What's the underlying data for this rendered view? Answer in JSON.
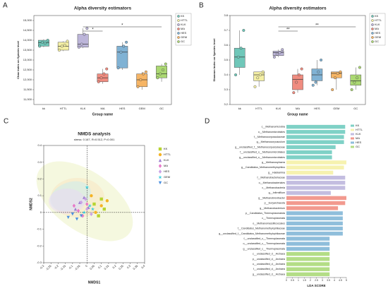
{
  "chart_data": [
    {
      "type": "box",
      "label": "A",
      "title": "Alpha diversity estimators",
      "x_label": "Group name",
      "y_label": "Chao index on Species level",
      "categories": [
        "kk",
        "HTTL",
        "KLK",
        "MA",
        "HES",
        "GEM",
        "GC"
      ],
      "colors": [
        "#6fc7b9",
        "#f4efa4",
        "#bcb5d9",
        "#f08c80",
        "#80b2d4",
        "#f6b565",
        "#abd872"
      ],
      "boxes": [
        {
          "min": 13650,
          "q1": 13700,
          "median": 13880,
          "q3": 14000,
          "max": 14050
        },
        {
          "min": 13450,
          "q1": 13500,
          "median": 13700,
          "q3": 13900,
          "max": 13950
        },
        {
          "min": 13600,
          "q1": 13650,
          "median": 13800,
          "q3": 14300,
          "max": 14600
        },
        {
          "min": 11800,
          "q1": 11900,
          "median": 12100,
          "q3": 12300,
          "max": 12550
        },
        {
          "min": 12500,
          "q1": 12600,
          "median": 13400,
          "q3": 13700,
          "max": 13900
        },
        {
          "min": 11500,
          "q1": 11650,
          "median": 12000,
          "q3": 12300,
          "max": 12400
        },
        {
          "min": 11900,
          "q1": 12100,
          "median": 12300,
          "q3": 12700,
          "max": 12800
        }
      ],
      "points": [
        [
          13700,
          13900,
          13850,
          14000
        ],
        [
          13500,
          13700,
          13750,
          13950
        ],
        [
          13650,
          13800,
          14300,
          14600
        ],
        [
          11900,
          12100,
          12300,
          12550
        ],
        [
          12600,
          13400,
          13700,
          13900
        ],
        [
          11650,
          12000,
          12300,
          12400
        ],
        [
          12100,
          12300,
          12500,
          12800
        ]
      ],
      "ylim": [
        10750,
        15250
      ],
      "yticks": [
        {
          "value": 11000,
          "label": "11,000"
        },
        {
          "value": 11500,
          "label": "11,500"
        },
        {
          "value": 12000,
          "label": "12,000"
        },
        {
          "value": 12500,
          "label": "12,500"
        },
        {
          "value": 13000,
          "label": "13,000"
        },
        {
          "value": 13500,
          "label": "13,500"
        },
        {
          "value": 14000,
          "label": "14,000"
        },
        {
          "value": 14500,
          "label": "14,500"
        },
        {
          "value": 15000,
          "label": "15,000"
        }
      ],
      "annotations": [
        {
          "from": "KLK",
          "to": "MA",
          "label": "*"
        },
        {
          "from": "KLK",
          "to": "GC",
          "label": "*"
        }
      ],
      "legend": [
        "KK",
        "HTTL",
        "KLK",
        "MA",
        "HES",
        "GEM",
        "GC"
      ]
    },
    {
      "type": "box",
      "label": "B",
      "title": "Alpha diversity estimators",
      "x_label": "Group name",
      "y_label": "Shannon index on Species level",
      "categories": [
        "kk",
        "HTTL",
        "KLK",
        "MA",
        "HES",
        "GEM",
        "GC"
      ],
      "colors": [
        "#6fc7b9",
        "#f4efa4",
        "#bcb5d9",
        "#f08c80",
        "#80b2d4",
        "#f6b565",
        "#abd872"
      ],
      "boxes": [
        {
          "min": 3.4,
          "q1": 3.45,
          "median": 3.52,
          "q3": 3.58,
          "max": 3.7
        },
        {
          "min": 3.32,
          "q1": 3.36,
          "median": 3.4,
          "q3": 3.42,
          "max": 3.42
        },
        {
          "min": 3.52,
          "q1": 3.53,
          "median": 3.55,
          "q3": 3.56,
          "max": 3.57
        },
        {
          "min": 3.28,
          "q1": 3.3,
          "median": 3.37,
          "q3": 3.4,
          "max": 3.44
        },
        {
          "min": 3.33,
          "q1": 3.36,
          "median": 3.4,
          "q3": 3.44,
          "max": 3.5
        },
        {
          "min": 3.3,
          "q1": 3.38,
          "median": 3.41,
          "q3": 3.42,
          "max": 3.42
        },
        {
          "min": 3.3,
          "q1": 3.33,
          "median": 3.36,
          "q3": 3.4,
          "max": 3.45
        }
      ],
      "points": [
        [
          3.4,
          3.52,
          3.58,
          3.7
        ],
        [
          3.32,
          3.38,
          3.4,
          3.42
        ],
        [
          3.52,
          3.54,
          3.55,
          3.57
        ],
        [
          3.28,
          3.35,
          3.4,
          3.44
        ],
        [
          3.33,
          3.35,
          3.42,
          3.5
        ],
        [
          3.3,
          3.38,
          3.41,
          3.42
        ],
        [
          3.3,
          3.35,
          3.38,
          3.45
        ]
      ],
      "ylim": [
        3.2,
        3.8
      ],
      "yticks": [
        {
          "value": 3.2,
          "label": "3.2"
        },
        {
          "value": 3.3,
          "label": "3.3"
        },
        {
          "value": 3.4,
          "label": "3.4"
        },
        {
          "value": 3.5,
          "label": "3.5"
        },
        {
          "value": 3.6,
          "label": "3.6"
        },
        {
          "value": 3.7,
          "label": "3.7"
        },
        {
          "value": 3.8,
          "label": "3.8"
        }
      ],
      "annotations": [
        {
          "from": "KLK",
          "to": "MA",
          "label": "**"
        },
        {
          "from": "KLK",
          "to": "GC",
          "label": "**"
        }
      ],
      "legend": [
        "KK",
        "HTTL",
        "KLK",
        "MA",
        "HES",
        "GEM",
        "GC"
      ]
    },
    {
      "type": "scatter",
      "label": "C",
      "title": "NMDS analysis",
      "subtitle": "stress: 0.167, R=0.512, P=0.001",
      "x_label": "NMDS1",
      "y_label": "NMDS2",
      "xlim": [
        -0.3,
        0.4
      ],
      "ylim": [
        -0.3,
        0.4
      ],
      "xticks": [
        -0.3,
        -0.25,
        -0.2,
        -0.15,
        -0.1,
        -0.05,
        0,
        0.05,
        0.1,
        0.15,
        0.2,
        0.25,
        0.3,
        0.35,
        0.4
      ],
      "yticks": [
        -0.3,
        -0.2,
        -0.1,
        0,
        0.1,
        0.2,
        0.3,
        0.4
      ],
      "series": [
        {
          "name": "KK",
          "color": "#b8d432",
          "marker": "square",
          "x": [
            0.05,
            0.12,
            0.08,
            0.1
          ],
          "y": [
            0.05,
            0.02,
            -0.02,
            0.08
          ]
        },
        {
          "name": "HTTL",
          "color": "#f5b325",
          "marker": "circle",
          "x": [
            0.1,
            0.14,
            0.06,
            0.03
          ],
          "y": [
            0.04,
            0.07,
            0.0,
            0.1
          ]
        },
        {
          "name": "KLK",
          "color": "#9d7fcf",
          "marker": "triangle",
          "x": [
            -0.05,
            -0.02,
            0.01,
            -0.08
          ],
          "y": [
            0.06,
            0.09,
            0.03,
            0.02
          ]
        },
        {
          "name": "MA",
          "color": "#e879c8",
          "marker": "diamond",
          "x": [
            -0.06,
            -0.03,
            0.0,
            -0.09
          ],
          "y": [
            0.01,
            -0.02,
            0.05,
            0.04
          ]
        },
        {
          "name": "HES",
          "color": "#c9a3e6",
          "marker": "diamond",
          "x": [
            -0.04,
            0.0,
            0.03,
            -0.01
          ],
          "y": [
            0.06,
            0.02,
            -0.01,
            0.08
          ]
        },
        {
          "name": "GEM",
          "color": "#33ccdd",
          "marker": "star",
          "x": [
            0.0,
            0.02,
            -0.02,
            0.04
          ],
          "y": [
            0.15,
            0.04,
            0.0,
            0.02
          ]
        },
        {
          "name": "GC",
          "color": "#4a8fe0",
          "marker": "triangle-down",
          "x": [
            -0.1,
            -0.13,
            -0.07,
            -0.04
          ],
          "y": [
            -0.01,
            -0.03,
            -0.04,
            -0.02
          ]
        }
      ]
    },
    {
      "type": "barh",
      "label": "D",
      "x_label": "LDA SCORE",
      "xlim": [
        0,
        5
      ],
      "xticks": [
        0,
        0.5,
        1,
        1.5,
        2,
        2.5,
        3,
        3.5,
        4,
        4.5,
        5
      ],
      "series": [
        {
          "name": "KK",
          "color": "#7fd1c6",
          "categories": [
            "c__Methanomicrobia",
            "o__Methanomicrobiales",
            "f__Methanocorpusculaceae",
            "g__Methanocorpusculum",
            "g__unclassified_f__Methanocorpusculaceae",
            "f__unclassified_o__Methanomicrobiales",
            "g__unclassified_o__Methanomicrobiales"
          ],
          "values": [
            4.9,
            4.9,
            4.8,
            4.8,
            4.1,
            3.8,
            3.8
          ]
        },
        {
          "name": "HTTL",
          "color": "#f6f2b0",
          "categories": [
            "g__Methanosphaera",
            "g__Candidatus_Methanomethylophilus",
            "g__Halolamina"
          ],
          "values": [
            5.0,
            4.8,
            3.9
          ]
        },
        {
          "name": "KLK",
          "color": "#c3bde0",
          "categories": [
            "f__Methanobacteriaceae",
            "o__Methanobacteriales",
            "c__Methanobacteria",
            "g__Infirmifilum"
          ],
          "values": [
            4.9,
            4.9,
            4.9,
            3.7
          ]
        },
        {
          "name": "MA",
          "color": "#f29a8f",
          "categories": [
            "g__Methanobrevibacter",
            "p__Euryarchaeota",
            "g__Methanobacterium"
          ],
          "values": [
            5.0,
            4.9,
            4.3
          ]
        },
        {
          "name": "HES",
          "color": "#8fbedb",
          "categories": [
            "p__Candidatus_Thermoplasmatota",
            "c__Thermoplasmata",
            "o__Methanomassiliicoccales",
            "f__Candidatus_Methanomethylophilaceae",
            "g__unclassified_f__Candidatus_Methanomethylophilaceae",
            "f__unclassified_c__Thermoplasmata",
            "o__unclassified_c__Thermoplasmata",
            "g__unclassified_c__Thermoplasmata"
          ],
          "values": [
            4.7,
            4.7,
            4.7,
            4.7,
            4.7,
            3.6,
            3.6,
            3.6
          ]
        },
        {
          "name": "GC",
          "color": "#b3dd86",
          "categories": [
            "c__unclassified_d__Archaea",
            "p__unclassified_d__Archaea",
            "o__unclassified_d__Archaea",
            "f__unclassified_d__Archaea",
            "g__unclassified_d__Archaea"
          ],
          "values": [
            3.6,
            3.6,
            3.6,
            3.6,
            3.6
          ]
        }
      ]
    }
  ]
}
